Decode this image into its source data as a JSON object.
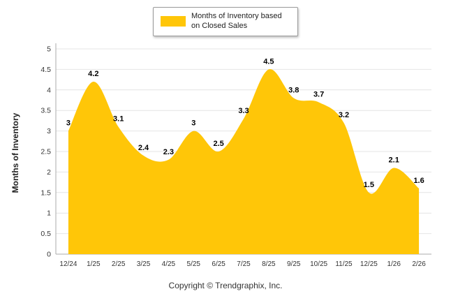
{
  "legend": {
    "label": "Months of Inventory based on Closed Sales"
  },
  "footer": {
    "copyright": "Copyright © Trendgraphix, Inc."
  },
  "colors": {
    "series": "#FFC608",
    "grid": "#E4E4E4",
    "axis": "#ABABAB",
    "tick_text": "#333333",
    "value_label": "#000000"
  },
  "chart_data": {
    "type": "area",
    "title": "Months of Inventory based on Closed Sales",
    "categories": [
      "12/24",
      "1/25",
      "2/25",
      "3/25",
      "4/25",
      "5/25",
      "6/25",
      "7/25",
      "8/25",
      "9/25",
      "10/25",
      "11/25",
      "12/25",
      "1/26",
      "2/26"
    ],
    "values": [
      3,
      4.2,
      3.1,
      2.4,
      2.3,
      3,
      2.5,
      3.3,
      4.5,
      3.8,
      3.7,
      3.2,
      1.5,
      2.1,
      1.6
    ],
    "ylabel": "Months of Inventory",
    "xlabel": "",
    "ylim": [
      0,
      5
    ],
    "ytick": 0.5,
    "grid": true,
    "legend_position": "top"
  }
}
